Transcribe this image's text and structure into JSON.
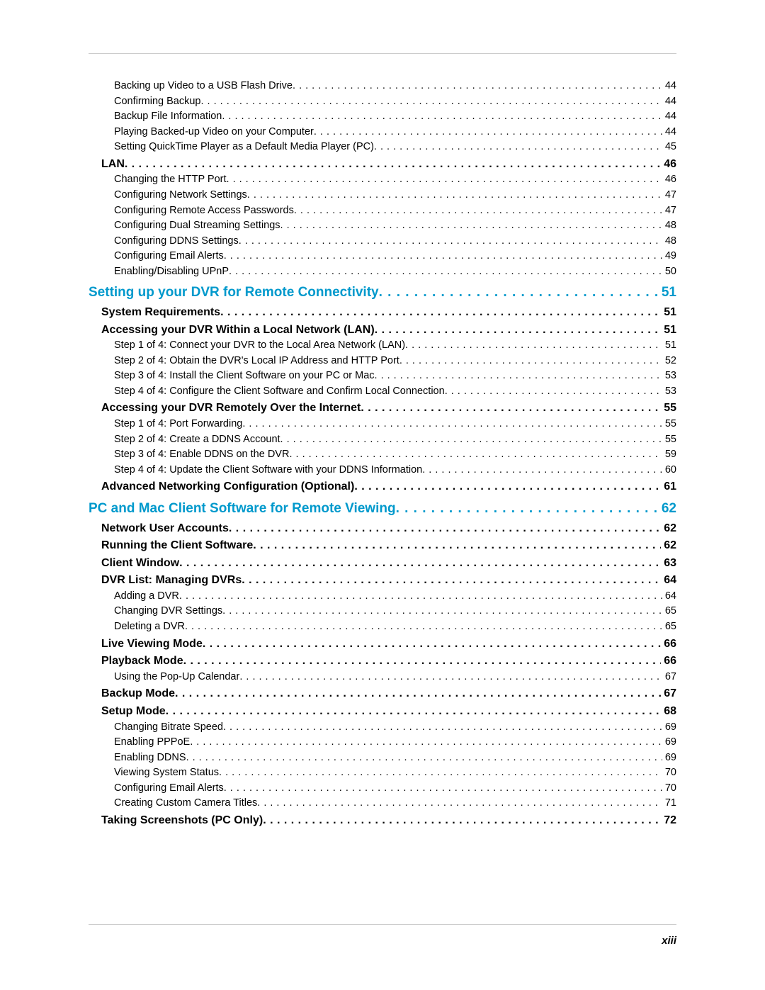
{
  "page_number": "xiii",
  "entries": [
    {
      "level": "item",
      "title": "Backing up Video to a USB Flash Drive",
      "page": "44"
    },
    {
      "level": "item",
      "title": "Confirming Backup",
      "page": "44"
    },
    {
      "level": "item",
      "title": "Backup File Information",
      "page": "44"
    },
    {
      "level": "item",
      "title": "Playing Backed-up Video on your Computer",
      "page": "44"
    },
    {
      "level": "item",
      "title": "Setting QuickTime Player as a Default Media Player (PC)",
      "page": "45"
    },
    {
      "level": "section",
      "title": "LAN",
      "page": "46"
    },
    {
      "level": "item",
      "title": "Changing the HTTP Port",
      "page": "46"
    },
    {
      "level": "item",
      "title": "Configuring Network Settings",
      "page": "47"
    },
    {
      "level": "item",
      "title": "Configuring Remote Access Passwords",
      "page": "47"
    },
    {
      "level": "item",
      "title": "Configuring Dual Streaming Settings",
      "page": "48"
    },
    {
      "level": "item",
      "title": "Configuring DDNS Settings",
      "page": "48"
    },
    {
      "level": "item",
      "title": "Configuring Email Alerts",
      "page": "49"
    },
    {
      "level": "item",
      "title": "Enabling/Disabling UPnP",
      "page": "50"
    },
    {
      "level": "chapter",
      "title": "Setting up your DVR for Remote Connectivity",
      "page": "51"
    },
    {
      "level": "section",
      "title": "System Requirements",
      "page": "51"
    },
    {
      "level": "section",
      "title": "Accessing your DVR Within a Local Network (LAN)",
      "page": "51"
    },
    {
      "level": "item",
      "title": "Step 1 of 4: Connect your DVR to the Local Area Network (LAN)",
      "page": "51"
    },
    {
      "level": "item",
      "title": "Step 2 of 4: Obtain the DVR's Local IP Address and HTTP Port",
      "page": "52"
    },
    {
      "level": "item",
      "title": "Step 3 of 4: Install the Client Software on your PC or Mac",
      "page": "53"
    },
    {
      "level": "item",
      "title": "Step 4 of 4: Configure the Client Software and Confirm Local Connection",
      "page": "53"
    },
    {
      "level": "section",
      "title": "Accessing your DVR Remotely Over the Internet",
      "page": "55"
    },
    {
      "level": "item",
      "title": "Step 1 of 4: Port Forwarding",
      "page": "55"
    },
    {
      "level": "item",
      "title": "Step 2 of 4: Create a DDNS Account",
      "page": "55"
    },
    {
      "level": "item",
      "title": "Step 3 of 4: Enable DDNS on the DVR",
      "page": "59"
    },
    {
      "level": "item",
      "title": "Step 4 of 4: Update the Client Software with your DDNS Information",
      "page": "60"
    },
    {
      "level": "section",
      "title": "Advanced Networking Configuration (Optional)",
      "page": "61"
    },
    {
      "level": "chapter",
      "title": "PC and Mac Client Software for Remote Viewing",
      "page": "62"
    },
    {
      "level": "section",
      "title": "Network User Accounts",
      "page": "62"
    },
    {
      "level": "section",
      "title": "Running the Client Software",
      "page": "62"
    },
    {
      "level": "section",
      "title": "Client Window",
      "page": "63"
    },
    {
      "level": "section",
      "title": "DVR List: Managing DVRs",
      "page": "64"
    },
    {
      "level": "item",
      "title": "Adding a DVR",
      "page": "64"
    },
    {
      "level": "item",
      "title": "Changing DVR Settings",
      "page": "65"
    },
    {
      "level": "item",
      "title": "Deleting a DVR",
      "page": "65"
    },
    {
      "level": "section",
      "title": "Live Viewing Mode",
      "page": "66"
    },
    {
      "level": "section",
      "title": "Playback Mode",
      "page": "66"
    },
    {
      "level": "item",
      "title": "Using the Pop-Up Calendar",
      "page": "67"
    },
    {
      "level": "section",
      "title": "Backup Mode",
      "page": "67"
    },
    {
      "level": "section",
      "title": "Setup Mode",
      "page": "68"
    },
    {
      "level": "item",
      "title": "Changing Bitrate Speed",
      "page": "69"
    },
    {
      "level": "item",
      "title": "Enabling PPPoE",
      "page": "69"
    },
    {
      "level": "item",
      "title": "Enabling DDNS",
      "page": "69"
    },
    {
      "level": "item",
      "title": "Viewing System Status",
      "page": "70"
    },
    {
      "level": "item",
      "title": "Configuring Email Alerts",
      "page": "70"
    },
    {
      "level": "item",
      "title": "Creating Custom Camera Titles",
      "page": "71"
    },
    {
      "level": "section",
      "title": "Taking Screenshots (PC Only)",
      "page": "72"
    }
  ]
}
